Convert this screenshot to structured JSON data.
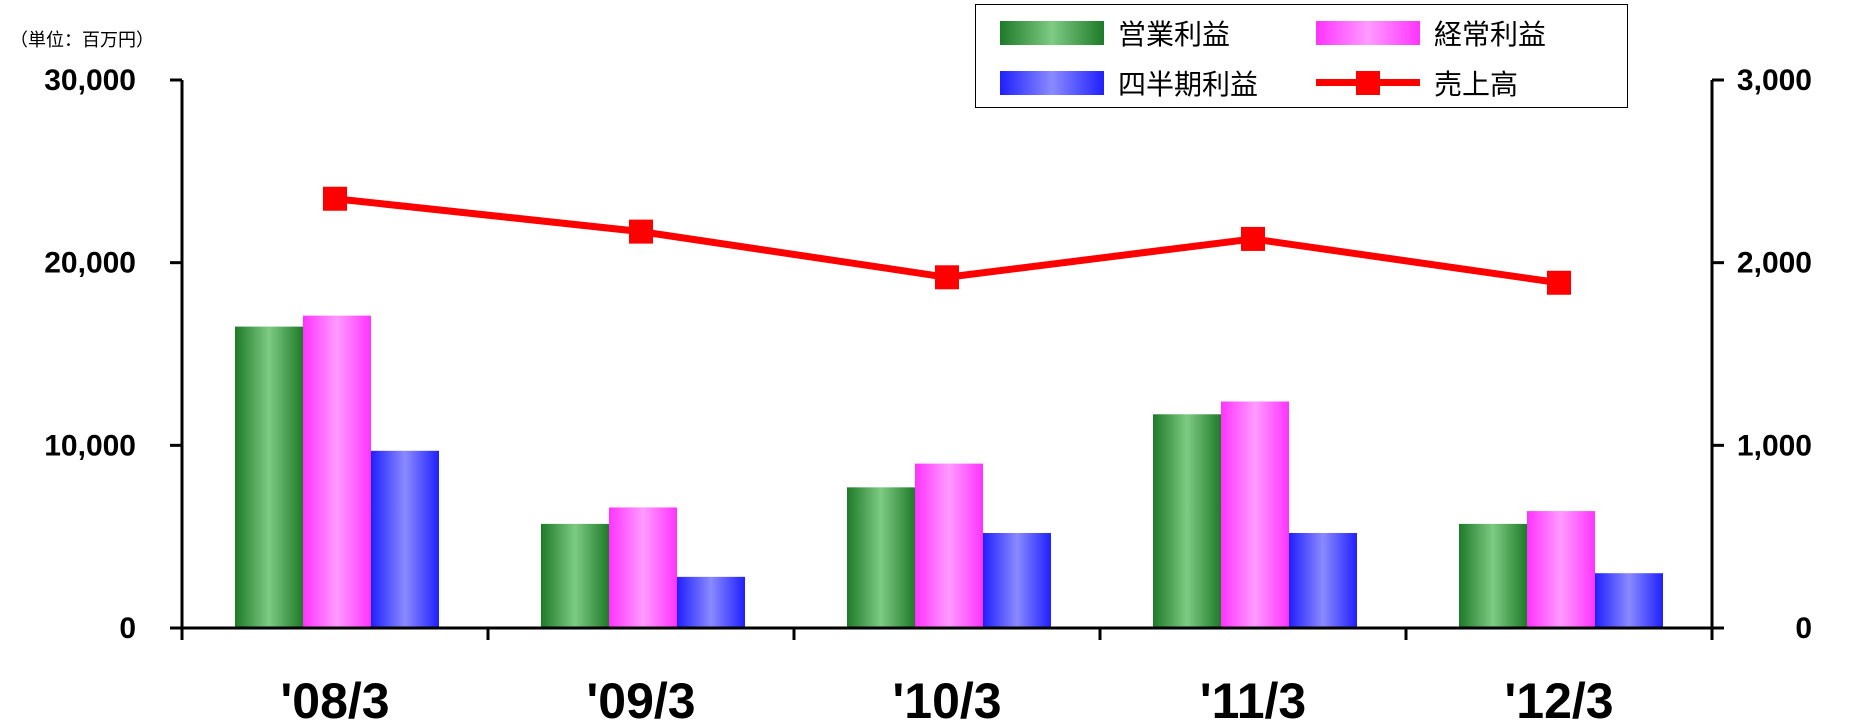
{
  "unit_label": "（単位：百万円）",
  "legend": {
    "items": [
      {
        "name": "営業利益",
        "kind": "bar",
        "color": "#2e8b3a"
      },
      {
        "name": "経常利益",
        "kind": "bar",
        "color": "#ff3dff"
      },
      {
        "name": "四半期利益",
        "kind": "bar",
        "color": "#3030ff"
      },
      {
        "name": "売上高",
        "kind": "line",
        "color": "#ff0000"
      }
    ]
  },
  "chart_data": {
    "type": "bar",
    "categories": [
      "'08/3",
      "'09/3",
      "'10/3",
      "'11/3",
      "'12/3"
    ],
    "series": [
      {
        "name": "営業利益",
        "type": "bar",
        "axis": "left",
        "values": [
          16500,
          5700,
          7700,
          11700,
          5700
        ]
      },
      {
        "name": "経常利益",
        "type": "bar",
        "axis": "left",
        "values": [
          17100,
          6600,
          9000,
          12400,
          6400
        ]
      },
      {
        "name": "四半期利益",
        "type": "bar",
        "axis": "left",
        "values": [
          9700,
          2800,
          5200,
          5200,
          3000
        ]
      },
      {
        "name": "売上高",
        "type": "line",
        "axis": "right",
        "values": [
          2350,
          2170,
          1920,
          2130,
          1890
        ]
      }
    ],
    "y_left": {
      "ticks": [
        "0",
        "10,000",
        "20,000",
        "30,000"
      ],
      "lim": [
        0,
        30000
      ]
    },
    "y_right": {
      "ticks": [
        "0",
        "1,000",
        "2,000",
        "3,000"
      ],
      "lim": [
        0,
        3000
      ]
    },
    "grid": false,
    "legend_position": "top-right",
    "colors": {
      "green": "#2e8b3a",
      "magenta": "#ff3dff",
      "blue": "#3030ff",
      "red": "#ff0000"
    }
  }
}
